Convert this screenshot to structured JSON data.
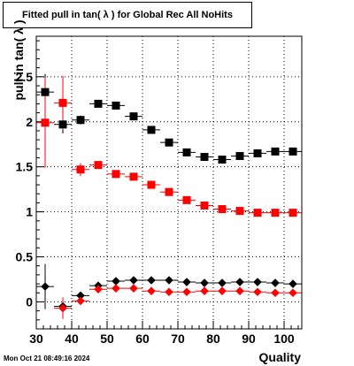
{
  "title": "Fitted pull in tan( λ ) for Global Rec All NoHits",
  "timestamp": "Mon Oct 21 08:49:16 2024",
  "chart_data": {
    "type": "scatter",
    "title": "Fitted pull in tan( λ ) for Global Rec All NoHits",
    "xlabel": "Quality",
    "ylabel": "pull in tan( λ )",
    "xlim": [
      30,
      105
    ],
    "ylim": [
      -0.3,
      2.95
    ],
    "xticks": [
      30,
      40,
      50,
      60,
      70,
      80,
      90,
      100
    ],
    "yticks": [
      0,
      0.5,
      1,
      1.5,
      2,
      2.5
    ],
    "ytick_labels": [
      "0",
      "0.5",
      "1",
      "1.5",
      "2",
      "2.5"
    ],
    "grid": true,
    "x": [
      32.5,
      37.5,
      42.5,
      47.5,
      52.5,
      57.5,
      62.5,
      67.5,
      72.5,
      77.5,
      82.5,
      87.5,
      92.5,
      97.5,
      102.5
    ],
    "series": [
      {
        "marker": "square",
        "color": "#000000",
        "values": [
          2.33,
          1.97,
          2.02,
          2.2,
          2.18,
          2.06,
          1.91,
          1.77,
          1.66,
          1.61,
          1.58,
          1.62,
          1.65,
          1.67,
          1.67
        ],
        "errors": [
          0.2,
          0.1,
          0.05,
          0.025,
          0.02,
          0.02,
          0.02,
          0.015,
          0.015,
          0.015,
          0.015,
          0.015,
          0.015,
          0.015,
          0.015
        ]
      },
      {
        "marker": "square",
        "color": "#ff0000",
        "values": [
          1.99,
          2.21,
          1.47,
          1.52,
          1.42,
          1.39,
          1.3,
          1.22,
          1.13,
          1.07,
          1.03,
          1.01,
          0.99,
          0.99,
          0.99
        ],
        "errors": [
          0.5,
          0.3,
          0.07,
          0.025,
          0.02,
          0.015,
          0.015,
          0.015,
          0.01,
          0.01,
          0.01,
          0.01,
          0.01,
          0.01,
          0.01
        ]
      },
      {
        "marker": "diamond",
        "color": "#000000",
        "values": [
          0.17,
          -0.05,
          0.07,
          0.18,
          0.23,
          0.24,
          0.24,
          0.24,
          0.22,
          0.21,
          0.21,
          0.22,
          0.22,
          0.21,
          0.2
        ],
        "errors": [
          0.25,
          0.1,
          0.04,
          0.02,
          0.015,
          0.015,
          0.01,
          0.01,
          0.01,
          0.01,
          0.01,
          0.01,
          0.01,
          0.01,
          0.01
        ]
      },
      {
        "marker": "diamond",
        "color": "#ff0000",
        "values": [
          null,
          -0.07,
          0.01,
          0.14,
          0.15,
          0.15,
          0.12,
          0.11,
          0.11,
          0.12,
          0.12,
          0.12,
          0.11,
          0.1,
          0.1
        ],
        "errors": [
          null,
          0.12,
          0.04,
          0.02,
          0.015,
          0.015,
          0.01,
          0.01,
          0.01,
          0.01,
          0.01,
          0.01,
          0.01,
          0.01,
          0.01
        ]
      }
    ]
  }
}
